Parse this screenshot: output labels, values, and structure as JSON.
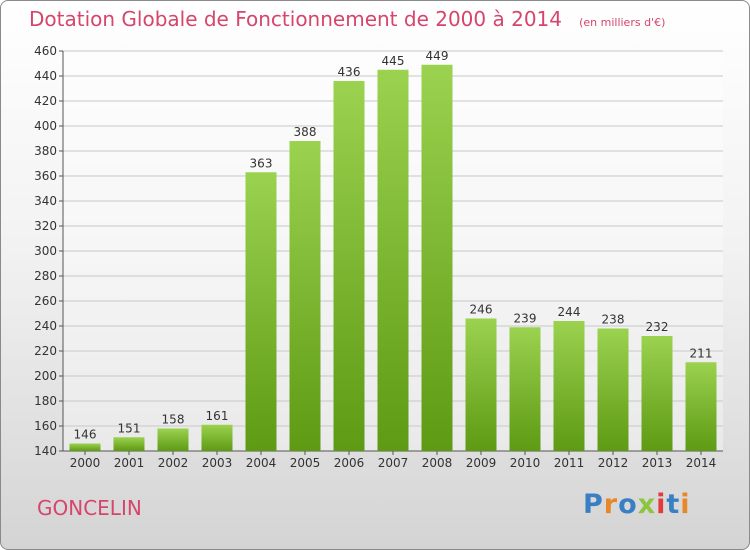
{
  "header": {
    "title": "Dotation Globale de Fonctionnement de 2000 à 2014",
    "subtitle": "(en milliers d'€)"
  },
  "footer": {
    "city": "GONCELIN",
    "logo": "Proxiti"
  },
  "colors": {
    "title": "#d6456b",
    "bar_top": "#9bd24f",
    "bar_bottom": "#5e9a14"
  },
  "chart_data": {
    "type": "bar",
    "title": "Dotation Globale de Fonctionnement de 2000 à 2014",
    "subtitle": "(en milliers d'€)",
    "categories": [
      "2000",
      "2001",
      "2002",
      "2003",
      "2004",
      "2005",
      "2006",
      "2007",
      "2008",
      "2009",
      "2010",
      "2011",
      "2012",
      "2013",
      "2014"
    ],
    "values": [
      146,
      151,
      158,
      161,
      363,
      388,
      436,
      445,
      449,
      246,
      239,
      244,
      238,
      232,
      211
    ],
    "ylim": [
      140,
      460
    ],
    "yticks": [
      140,
      160,
      180,
      200,
      220,
      240,
      260,
      280,
      300,
      320,
      340,
      360,
      380,
      400,
      420,
      440,
      460
    ],
    "grid": true,
    "data_labels": true
  }
}
